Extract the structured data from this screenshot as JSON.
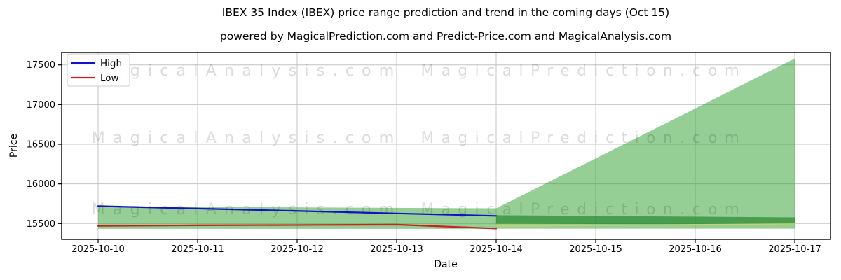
{
  "header": {
    "title": "IBEX 35 Index (IBEX) price range prediction and trend in the coming days (Oct 15)",
    "subtitle": "powered by MagicalPrediction.com and Predict-Price.com and MagicalAnalysis.com"
  },
  "axes": {
    "x_label": "Date",
    "y_label": "Price"
  },
  "legend": {
    "items": [
      {
        "label": "High",
        "color": "#1212cc"
      },
      {
        "label": "Low",
        "color": "#cc1f1f"
      }
    ]
  },
  "watermarks": {
    "left_text": "MagicalAnalysis.com",
    "right_text": "MagicalPrediction.com",
    "color": "rgba(0,0,0,0.14)"
  },
  "colors": {
    "background": "#ffffff",
    "grid": "#c4c4c4",
    "spine": "#000000",
    "band_green": "rgba(44,160,44,0.5)",
    "band_green_dark": "rgba(24,128,34,0.62)"
  },
  "chart_data": {
    "type": "line",
    "title": "IBEX 35 Index (IBEX) price range prediction and trend in the coming days (Oct 15)",
    "xlabel": "Date",
    "ylabel": "Price",
    "grid": true,
    "legend_position": "upper left",
    "x": [
      "2025-10-10",
      "2025-10-11",
      "2025-10-12",
      "2025-10-13",
      "2025-10-14",
      "2025-10-15",
      "2025-10-16",
      "2025-10-17"
    ],
    "y_ticks": [
      15500,
      16000,
      16500,
      17000,
      17500
    ],
    "ylim": [
      15310,
      17660
    ],
    "series": [
      {
        "name": "High",
        "color": "#1212cc",
        "width": 2.2,
        "x_index": [
          0,
          1,
          2,
          3,
          4
        ],
        "values": [
          15720,
          15689,
          15659,
          15628,
          15597
        ]
      },
      {
        "name": "Low",
        "color": "#cc1f1f",
        "width": 2.2,
        "x_index": [
          0,
          1,
          2,
          3,
          4
        ],
        "values": [
          15470,
          15477,
          15481,
          15486,
          15437
        ]
      },
      {
        "name": "forecast-trend",
        "color": "#c9cf6e",
        "width": 1.6,
        "x_index": [
          4,
          7
        ],
        "values": [
          15468,
          15495
        ]
      }
    ],
    "bands": [
      {
        "name": "history-range",
        "color": "rgba(44,160,44,0.5)",
        "x_index": [
          0,
          4
        ],
        "top": [
          15716,
          15692
        ],
        "bottom": [
          15433,
          15433
        ]
      },
      {
        "name": "forecast-range-fan",
        "color": "rgba(44,160,44,0.5)",
        "x_index": [
          4,
          7
        ],
        "top": [
          15692,
          17580
        ],
        "bottom": [
          15435,
          15435
        ]
      },
      {
        "name": "forecast-core-band",
        "color": "rgba(24,128,34,0.62)",
        "x_index": [
          4,
          7
        ],
        "top": [
          15605,
          15578
        ],
        "bottom": [
          15497,
          15488
        ]
      }
    ]
  }
}
